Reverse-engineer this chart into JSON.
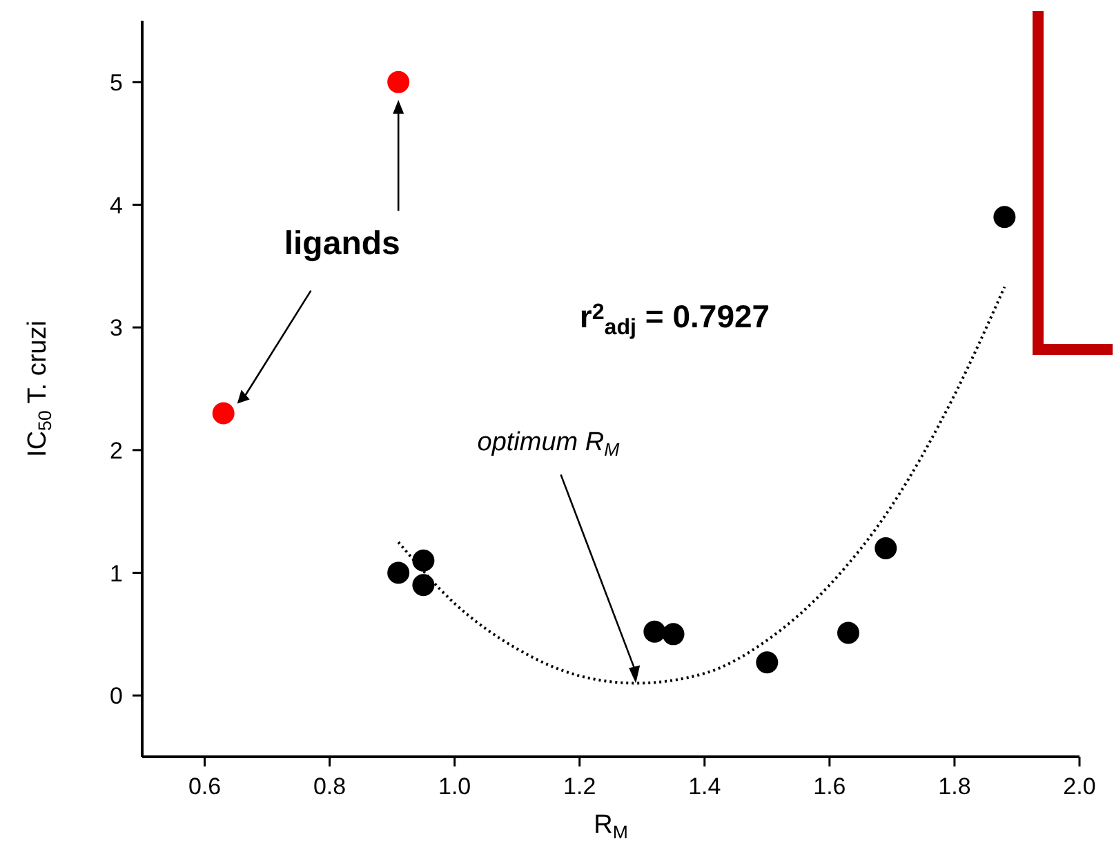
{
  "chart_data": {
    "type": "scatter",
    "xlabel": "R$_{M}$",
    "ylabel": "IC$_{50}$  T. cruzi",
    "xlim": [
      0.5,
      2.0
    ],
    "xticks": [
      0.6,
      0.8,
      {
        "value": 1.0,
        "label": "1.0"
      },
      1.2,
      1.4,
      1.6,
      1.8,
      {
        "value": 2.0,
        "label": "2.0"
      }
    ],
    "ylim": [
      -0.5,
      5.5
    ],
    "yticks": [
      0,
      1,
      2,
      3,
      4,
      5
    ],
    "grid": false,
    "marker": "circle",
    "series": [
      {
        "color": "#ff0000",
        "x": [
          0.63,
          0.91
        ],
        "values": [
          2.3,
          5.0
        ]
      },
      {
        "color": "#000000",
        "x": [
          0.91,
          0.95,
          0.95,
          1.32,
          1.35,
          1.5,
          1.63,
          1.69,
          1.88
        ],
        "values": [
          1.0,
          1.1,
          0.9,
          0.52,
          0.5,
          0.27,
          0.51,
          1.2,
          3.9
        ]
      },
      {
        "type": "line",
        "color": "#000000",
        "marker": "none",
        "line_style": "dotted",
        "x": [
          0.91,
          1.0,
          1.1,
          1.2,
          1.29,
          1.4,
          1.5,
          1.6,
          1.7,
          1.8,
          1.88
        ],
        "values": [
          1.25,
          0.75,
          0.38,
          0.16,
          0.1,
          0.18,
          0.45,
          0.9,
          1.55,
          2.45,
          3.33
        ]
      }
    ],
    "annotations": [
      "ligands",
      "r$^{2}$$_{adj}$ = 0.7927",
      {
        "text": "optimum R$_{M}$",
        "x": 1.29,
        "y": 0.1
      }
    ]
  }
}
